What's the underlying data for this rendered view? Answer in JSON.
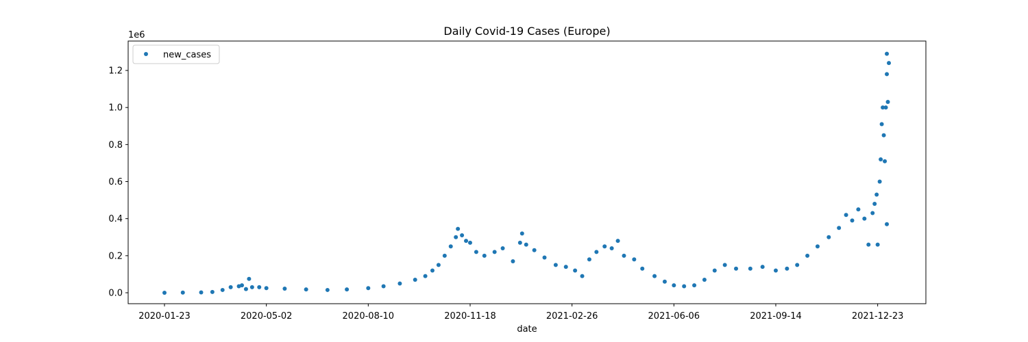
{
  "chart_data": {
    "type": "scatter",
    "title": "Daily Covid-19 Cases (Europe)",
    "xlabel": "date",
    "ylabel": "",
    "y_offset_label": "1e6",
    "x_range": [
      "2020-01-23",
      "2022-01-03"
    ],
    "ylim": [
      0,
      1.3
    ],
    "y_ticks": [
      0.0,
      0.2,
      0.4,
      0.6,
      0.8,
      1.0,
      1.2
    ],
    "y_tick_labels": [
      "0.0",
      "0.2",
      "0.4",
      "0.6",
      "0.8",
      "1.0",
      "1.2"
    ],
    "x_ticks": [
      "2020-01-23",
      "2020-05-02",
      "2020-08-10",
      "2020-11-18",
      "2021-02-26",
      "2021-06-06",
      "2021-09-14",
      "2021-12-23"
    ],
    "grid": false,
    "legend_position": "top-left",
    "marker_color": "#1f77b4",
    "series": [
      {
        "name": "new_cases",
        "points": [
          [
            "2020-01-23",
            0.0
          ],
          [
            "2020-02-10",
            0.001
          ],
          [
            "2020-02-28",
            0.002
          ],
          [
            "2020-03-10",
            0.004
          ],
          [
            "2020-03-20",
            0.015
          ],
          [
            "2020-03-28",
            0.03
          ],
          [
            "2020-04-05",
            0.035
          ],
          [
            "2020-04-08",
            0.04
          ],
          [
            "2020-04-12",
            0.02
          ],
          [
            "2020-04-15",
            0.075
          ],
          [
            "2020-04-18",
            0.03
          ],
          [
            "2020-04-25",
            0.03
          ],
          [
            "2020-05-02",
            0.025
          ],
          [
            "2020-05-20",
            0.022
          ],
          [
            "2020-06-10",
            0.018
          ],
          [
            "2020-07-01",
            0.015
          ],
          [
            "2020-07-20",
            0.018
          ],
          [
            "2020-08-10",
            0.025
          ],
          [
            "2020-08-25",
            0.035
          ],
          [
            "2020-09-10",
            0.05
          ],
          [
            "2020-09-25",
            0.07
          ],
          [
            "2020-10-05",
            0.09
          ],
          [
            "2020-10-12",
            0.12
          ],
          [
            "2020-10-18",
            0.15
          ],
          [
            "2020-10-24",
            0.2
          ],
          [
            "2020-10-30",
            0.25
          ],
          [
            "2020-11-04",
            0.3
          ],
          [
            "2020-11-06",
            0.345
          ],
          [
            "2020-11-10",
            0.31
          ],
          [
            "2020-11-14",
            0.28
          ],
          [
            "2020-11-18",
            0.27
          ],
          [
            "2020-11-24",
            0.22
          ],
          [
            "2020-12-02",
            0.2
          ],
          [
            "2020-12-12",
            0.22
          ],
          [
            "2020-12-20",
            0.24
          ],
          [
            "2020-12-30",
            0.17
          ],
          [
            "2021-01-06",
            0.27
          ],
          [
            "2021-01-08",
            0.32
          ],
          [
            "2021-01-12",
            0.26
          ],
          [
            "2021-01-20",
            0.23
          ],
          [
            "2021-01-30",
            0.19
          ],
          [
            "2021-02-10",
            0.15
          ],
          [
            "2021-02-20",
            0.14
          ],
          [
            "2021-03-01",
            0.12
          ],
          [
            "2021-03-08",
            0.09
          ],
          [
            "2021-03-15",
            0.18
          ],
          [
            "2021-03-22",
            0.22
          ],
          [
            "2021-03-30",
            0.25
          ],
          [
            "2021-04-06",
            0.24
          ],
          [
            "2021-04-12",
            0.28
          ],
          [
            "2021-04-18",
            0.2
          ],
          [
            "2021-04-28",
            0.18
          ],
          [
            "2021-05-06",
            0.13
          ],
          [
            "2021-05-18",
            0.09
          ],
          [
            "2021-05-28",
            0.06
          ],
          [
            "2021-06-06",
            0.04
          ],
          [
            "2021-06-16",
            0.035
          ],
          [
            "2021-06-26",
            0.04
          ],
          [
            "2021-07-06",
            0.07
          ],
          [
            "2021-07-16",
            0.12
          ],
          [
            "2021-07-26",
            0.15
          ],
          [
            "2021-08-06",
            0.13
          ],
          [
            "2021-08-20",
            0.13
          ],
          [
            "2021-09-01",
            0.14
          ],
          [
            "2021-09-14",
            0.12
          ],
          [
            "2021-09-25",
            0.13
          ],
          [
            "2021-10-05",
            0.15
          ],
          [
            "2021-10-15",
            0.2
          ],
          [
            "2021-10-25",
            0.25
          ],
          [
            "2021-11-05",
            0.3
          ],
          [
            "2021-11-15",
            0.35
          ],
          [
            "2021-11-22",
            0.42
          ],
          [
            "2021-11-28",
            0.39
          ],
          [
            "2021-12-04",
            0.45
          ],
          [
            "2021-12-10",
            0.4
          ],
          [
            "2021-12-14",
            0.26
          ],
          [
            "2021-12-18",
            0.43
          ],
          [
            "2021-12-20",
            0.48
          ],
          [
            "2021-12-22",
            0.53
          ],
          [
            "2021-12-23",
            0.26
          ],
          [
            "2021-12-25",
            0.6
          ],
          [
            "2021-12-26",
            0.72
          ],
          [
            "2021-12-27",
            0.91
          ],
          [
            "2021-12-28",
            1.0
          ],
          [
            "2021-12-29",
            0.85
          ],
          [
            "2021-12-30",
            0.71
          ],
          [
            "2021-12-31",
            1.0
          ],
          [
            "2022-01-01",
            1.29
          ],
          [
            "2022-01-01",
            0.37
          ],
          [
            "2022-01-01",
            1.18
          ],
          [
            "2022-01-02",
            1.03
          ],
          [
            "2022-01-03",
            1.24
          ]
        ]
      }
    ]
  }
}
